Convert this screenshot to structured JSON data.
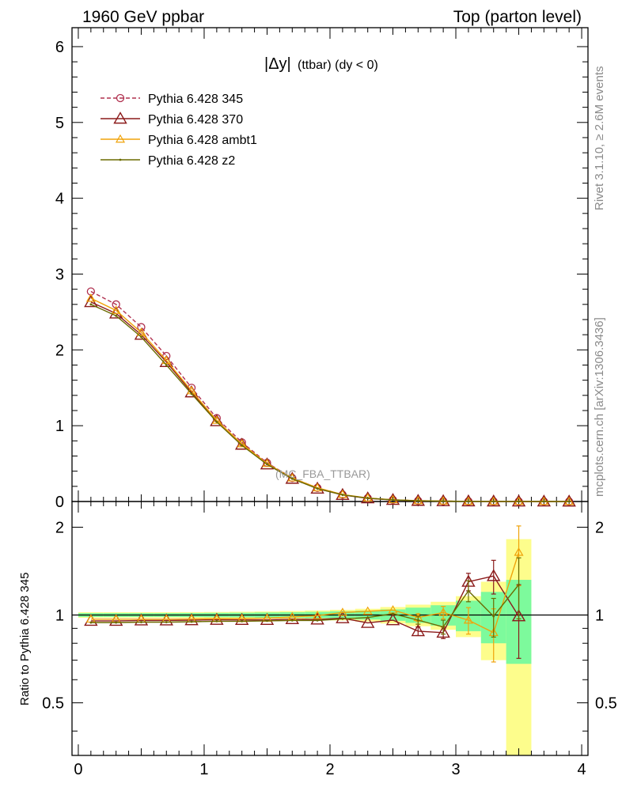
{
  "header": {
    "left": "1960 GeV ppbar",
    "right": "Top (parton level)"
  },
  "title": {
    "main": "|Δy|",
    "sub": "(ttbar) (dy < 0)"
  },
  "watermark": "(MC_FBA_TTBAR)",
  "side_label_top": "Rivet 3.1.10, ≥ 2.6M events",
  "side_label_bottom": "mcplots.cern.ch [arXiv:1306.3436]",
  "ratio_ylabel": "Ratio to Pythia 6.428 345",
  "colors": {
    "p345": "#b0304f",
    "p370": "#8b1a1a",
    "ambt1": "#f0a30a",
    "z2": "#6b6b00",
    "band_inner": "#7dfa9c",
    "band_outer": "#fdfd8c"
  },
  "chart_data": [
    {
      "type": "line",
      "panel": "main",
      "x": [
        0.1,
        0.3,
        0.5,
        0.7,
        0.9,
        1.1,
        1.3,
        1.5,
        1.7,
        1.9,
        2.1,
        2.3,
        2.5,
        2.7,
        2.9,
        3.1,
        3.3,
        3.5,
        3.7,
        3.9
      ],
      "series": [
        {
          "name": "Pythia 6.428 345",
          "key": "p345",
          "marker": "circle",
          "dashed": true,
          "values": [
            2.77,
            2.6,
            2.3,
            1.92,
            1.5,
            1.1,
            0.78,
            0.51,
            0.31,
            0.18,
            0.09,
            0.045,
            0.022,
            0.01,
            0.005,
            0.002,
            0.001,
            0.0005,
            0.0002,
            0.0001
          ]
        },
        {
          "name": "Pythia 6.428 370",
          "key": "p370",
          "marker": "triangle-big",
          "dashed": false,
          "values": [
            2.63,
            2.48,
            2.2,
            1.84,
            1.44,
            1.06,
            0.75,
            0.49,
            0.3,
            0.17,
            0.087,
            0.042,
            0.021,
            0.009,
            0.0045,
            0.0025,
            0.0013,
            0.0005,
            0.0002,
            0.0001
          ]
        },
        {
          "name": "Pythia 6.428 ambt1",
          "key": "ambt1",
          "marker": "triangle",
          "dashed": false,
          "values": [
            2.68,
            2.52,
            2.23,
            1.86,
            1.46,
            1.07,
            0.76,
            0.5,
            0.31,
            0.18,
            0.092,
            0.046,
            0.023,
            0.01,
            0.005,
            0.002,
            0.0009,
            0.0008,
            0.0002,
            0.0001
          ]
        },
        {
          "name": "Pythia 6.428 z2",
          "key": "z2",
          "marker": "dot",
          "dashed": false,
          "values": [
            2.6,
            2.45,
            2.17,
            1.8,
            1.42,
            1.05,
            0.74,
            0.49,
            0.3,
            0.17,
            0.088,
            0.044,
            0.022,
            0.0095,
            0.0045,
            0.0022,
            0.001,
            0.0006,
            0.0002,
            0.0001
          ]
        }
      ],
      "xlim": [
        -0.05,
        4.05
      ],
      "ylim": [
        0,
        6.25
      ],
      "yticks": [
        0,
        1,
        2,
        3,
        4,
        5,
        6
      ],
      "legend": "top-left"
    },
    {
      "type": "line",
      "panel": "ratio",
      "x": [
        0.1,
        0.3,
        0.5,
        0.7,
        0.9,
        1.1,
        1.3,
        1.5,
        1.7,
        1.9,
        2.1,
        2.3,
        2.5,
        2.7,
        2.9,
        3.1,
        3.3,
        3.5
      ],
      "reference": 1.0,
      "series": [
        {
          "name": "Pythia 6.428 370",
          "key": "p370",
          "marker": "triangle-big",
          "dashed": false,
          "values": [
            0.955,
            0.955,
            0.958,
            0.958,
            0.96,
            0.963,
            0.962,
            0.962,
            0.968,
            0.965,
            0.975,
            0.94,
            0.96,
            0.88,
            0.87,
            1.3,
            1.36,
            0.99
          ],
          "errors": [
            0.005,
            0.005,
            0.005,
            0.005,
            0.005,
            0.006,
            0.006,
            0.007,
            0.008,
            0.01,
            0.012,
            0.015,
            0.02,
            0.03,
            0.04,
            0.09,
            0.18,
            0.28
          ]
        },
        {
          "name": "Pythia 6.428 ambt1",
          "key": "ambt1",
          "marker": "triangle",
          "dashed": false,
          "values": [
            0.968,
            0.968,
            0.968,
            0.968,
            0.97,
            0.972,
            0.972,
            0.975,
            0.985,
            0.995,
            1.02,
            1.03,
            1.04,
            0.98,
            1.02,
            0.96,
            0.87,
            1.64
          ],
          "errors": [
            0.005,
            0.005,
            0.005,
            0.005,
            0.005,
            0.006,
            0.006,
            0.007,
            0.008,
            0.01,
            0.012,
            0.015,
            0.02,
            0.03,
            0.05,
            0.1,
            0.18,
            0.38
          ]
        },
        {
          "name": "Pythia 6.428 z2",
          "key": "z2",
          "marker": "dot",
          "dashed": false,
          "values": [
            0.942,
            0.942,
            0.945,
            0.945,
            0.948,
            0.952,
            0.952,
            0.955,
            0.958,
            0.958,
            0.97,
            0.98,
            1.01,
            0.96,
            0.91,
            1.21,
            0.99,
            1.27
          ],
          "errors": [
            0.005,
            0.005,
            0.005,
            0.005,
            0.005,
            0.006,
            0.006,
            0.007,
            0.008,
            0.01,
            0.012,
            0.015,
            0.02,
            0.03,
            0.05,
            0.1,
            0.15,
            0.3
          ]
        }
      ],
      "bands": {
        "x_edges": [
          0.0,
          0.2,
          0.4,
          0.6,
          0.8,
          1.0,
          1.2,
          1.4,
          1.6,
          1.8,
          2.0,
          2.2,
          2.4,
          2.6,
          2.8,
          3.0,
          3.2,
          3.4,
          3.6
        ],
        "inner": [
          0.015,
          0.015,
          0.015,
          0.015,
          0.016,
          0.017,
          0.018,
          0.02,
          0.022,
          0.025,
          0.03,
          0.035,
          0.045,
          0.06,
          0.08,
          0.12,
          0.2,
          0.32
        ],
        "outer": [
          0.022,
          0.022,
          0.022,
          0.022,
          0.023,
          0.024,
          0.026,
          0.028,
          0.032,
          0.036,
          0.042,
          0.05,
          0.065,
          0.085,
          0.11,
          0.16,
          0.3,
          0.82
        ]
      },
      "xlim": [
        -0.05,
        4.05
      ],
      "ylim": [
        0.33,
        2.45
      ],
      "ylog": true,
      "yticks": [
        0.5,
        1,
        2
      ],
      "ytick_labels": [
        "0.5",
        "1",
        "2"
      ],
      "xticks": [
        0,
        1,
        2,
        3,
        4
      ],
      "xtick_labels": [
        "0",
        "1",
        "2",
        "3",
        "4"
      ]
    }
  ]
}
